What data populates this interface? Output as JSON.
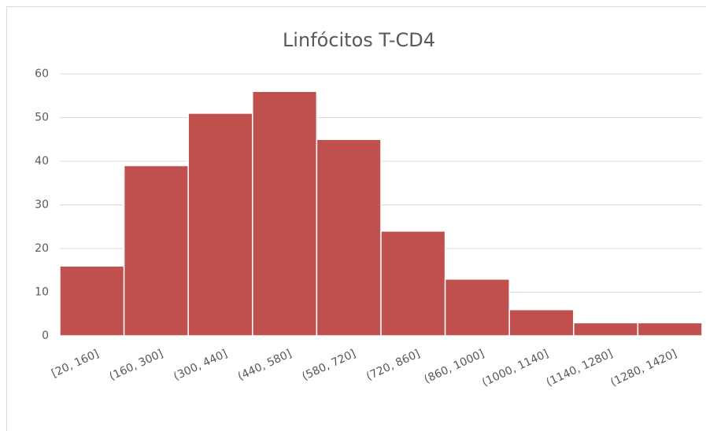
{
  "chart_data": {
    "type": "bar",
    "title": "Linfócitos T-CD4",
    "categories": [
      "[20, 160]",
      "(160, 300]",
      "(300, 440]",
      "(440, 580]",
      "(580, 720]",
      "(720, 860]",
      "(860, 1000]",
      "(1000, 1140]",
      "(1140, 1280]",
      "(1280, 1420]"
    ],
    "values": [
      16,
      39,
      51,
      56,
      45,
      24,
      13,
      6,
      3,
      3
    ],
    "color": "#c0504d",
    "ylim": [
      0,
      60
    ],
    "yticks": [
      0,
      10,
      20,
      30,
      40,
      50,
      60
    ],
    "grid": true
  }
}
